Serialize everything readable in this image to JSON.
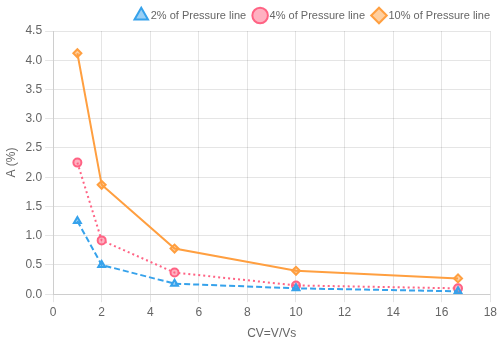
{
  "chart_data": {
    "type": "line",
    "xlabel": "CV=V/Vs",
    "ylabel": "A (%)",
    "x": [
      1,
      2,
      5,
      10,
      16.67
    ],
    "series": [
      {
        "name": "2% of Pressure line",
        "values": [
          1.25,
          0.5,
          0.18,
          0.1,
          0.05
        ],
        "line_style": "dashed",
        "marker": "triangle"
      },
      {
        "name": "4% of Pressure line",
        "values": [
          2.25,
          0.92,
          0.37,
          0.15,
          0.1
        ],
        "line_style": "dotted",
        "marker": "circle"
      },
      {
        "name": "10% of Pressure line",
        "values": [
          4.12,
          1.87,
          0.78,
          0.4,
          0.27
        ],
        "line_style": "solid",
        "marker": "diamond"
      }
    ],
    "xlim": [
      0,
      18
    ],
    "xticks": [
      0,
      2,
      4,
      6,
      8,
      10,
      12,
      14,
      16,
      18
    ],
    "ylim": [
      0,
      4.5
    ],
    "yticks": [
      {
        "value": 0,
        "label": "0.0"
      },
      {
        "value": 0.5,
        "label": "0.5"
      },
      {
        "value": 1,
        "label": "1.0"
      },
      {
        "value": 1.5,
        "label": "1.5"
      },
      {
        "value": 2,
        "label": "2.0"
      },
      {
        "value": 2.5,
        "label": "2.5"
      },
      {
        "value": 3,
        "label": "3.0"
      },
      {
        "value": 3.5,
        "label": "3.5"
      },
      {
        "value": 4,
        "label": "4.0"
      },
      {
        "value": 4.5,
        "label": "4.5"
      }
    ],
    "legend": "upper right",
    "grid": true
  }
}
